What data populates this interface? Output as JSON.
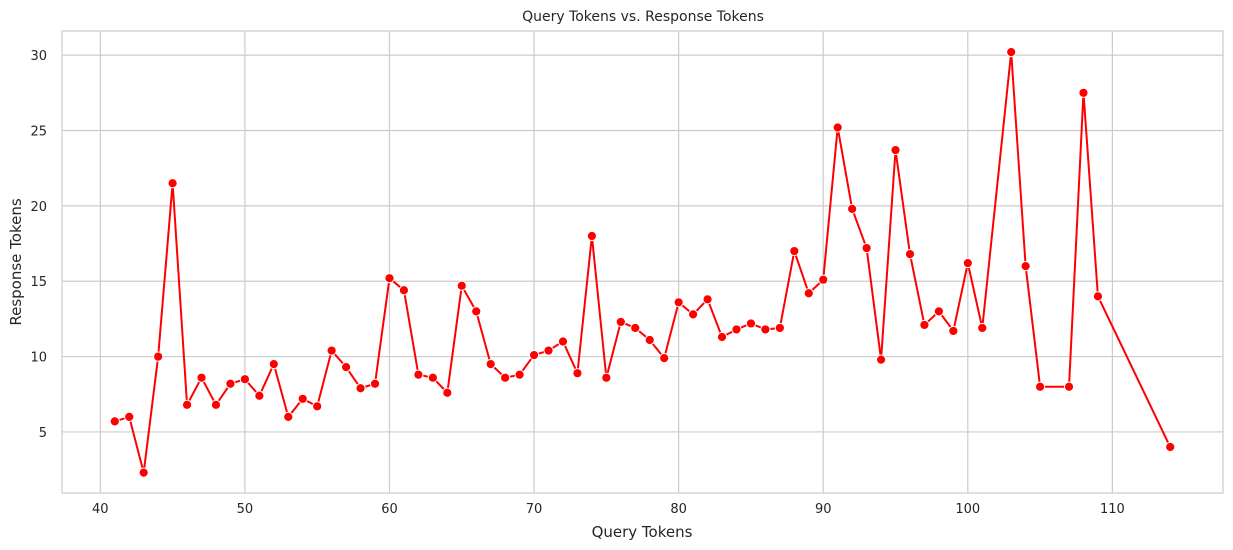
{
  "chart_data": {
    "type": "line",
    "title": "Query Tokens vs. Response Tokens",
    "xlabel": "Query Tokens",
    "ylabel": "Response Tokens",
    "xlim": [
      37.35,
      117.65
    ],
    "ylim": [
      0.95,
      31.6
    ],
    "xticks": [
      40,
      50,
      60,
      70,
      80,
      90,
      100,
      110
    ],
    "yticks": [
      5,
      10,
      15,
      20,
      25,
      30
    ],
    "grid": true,
    "colors": {
      "line": "#ff0000",
      "marker": "#ff0000",
      "marker_edge": "#ffffff",
      "grid": "#cccccc",
      "text": "#262626"
    },
    "series": [
      {
        "name": "Response Tokens",
        "marker": "o",
        "x": [
          41,
          42,
          43,
          44,
          45,
          46,
          47,
          48,
          49,
          50,
          51,
          52,
          53,
          54,
          55,
          56,
          57,
          58,
          59,
          60,
          61,
          62,
          63,
          64,
          65,
          66,
          67,
          68,
          69,
          70,
          71,
          72,
          73,
          74,
          75,
          76,
          77,
          78,
          79,
          80,
          81,
          82,
          83,
          84,
          85,
          86,
          87,
          88,
          89,
          90,
          91,
          92,
          93,
          94,
          95,
          96,
          97,
          98,
          99,
          100,
          101,
          103,
          104,
          105,
          107,
          108,
          109,
          114
        ],
        "y": [
          5.7,
          6.0,
          2.3,
          10.0,
          21.5,
          6.8,
          8.6,
          6.8,
          8.2,
          8.5,
          7.4,
          9.5,
          6.0,
          7.2,
          6.7,
          10.4,
          9.3,
          7.9,
          8.2,
          15.2,
          14.4,
          8.8,
          8.6,
          7.6,
          14.7,
          13.0,
          9.5,
          8.6,
          8.8,
          10.1,
          10.4,
          11.0,
          8.9,
          18.0,
          8.6,
          12.3,
          11.9,
          11.1,
          9.9,
          13.6,
          12.8,
          13.8,
          11.3,
          11.8,
          12.2,
          11.8,
          11.9,
          17.0,
          14.2,
          15.1,
          25.2,
          19.8,
          17.2,
          9.8,
          23.7,
          16.8,
          12.1,
          13.0,
          11.7,
          16.2,
          11.9,
          30.2,
          16.0,
          8.0,
          8.0,
          27.5,
          14.0,
          4.0
        ]
      }
    ]
  }
}
